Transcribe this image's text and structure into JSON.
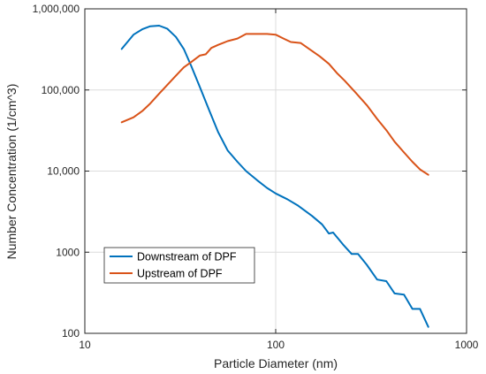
{
  "chart_data": {
    "type": "line",
    "title": "",
    "xlabel": "Particle Diameter (nm)",
    "ylabel": "Number Concentration (1/cm^3)",
    "xscale": "log",
    "yscale": "log",
    "xlim": [
      10,
      1000
    ],
    "ylim": [
      100,
      1000000
    ],
    "xticks": [
      10,
      100,
      1000
    ],
    "xtick_labels": [
      "10",
      "100",
      "1000"
    ],
    "yticks": [
      100,
      1000,
      10000,
      100000,
      1000000
    ],
    "ytick_labels": [
      "100",
      "1000",
      "10,000",
      "100,000",
      "1,000,000"
    ],
    "grid": true,
    "legend_position": "lower-left",
    "series": [
      {
        "name": "Downstream of DPF",
        "color": "#0072BD",
        "x": [
          15.6,
          18,
          20,
          22,
          24.5,
          27,
          30,
          33,
          36,
          40,
          45,
          50,
          56,
          63,
          70,
          80,
          90,
          100,
          115,
          130,
          155,
          175,
          190,
          200,
          225,
          250,
          270,
          300,
          340,
          380,
          420,
          470,
          520,
          570,
          630
        ],
        "y": [
          320000,
          480000,
          560000,
          610000,
          620000,
          570000,
          450000,
          320000,
          200000,
          110000,
          55000,
          30000,
          18000,
          13000,
          10000,
          7700,
          6200,
          5300,
          4500,
          3800,
          2800,
          2200,
          1700,
          1750,
          1250,
          950,
          950,
          700,
          460,
          440,
          310,
          300,
          200,
          200,
          120
        ]
      },
      {
        "name": "Upstream of DPF",
        "color": "#D95319",
        "x": [
          15.6,
          18,
          20,
          22,
          24.5,
          27,
          30,
          33,
          36,
          40,
          43,
          46,
          50,
          56,
          63,
          70,
          80,
          90,
          100,
          110,
          120,
          135,
          150,
          170,
          190,
          210,
          230,
          260,
          300,
          340,
          380,
          420,
          470,
          520,
          570,
          630
        ],
        "y": [
          40000,
          46000,
          55000,
          68000,
          90000,
          115000,
          150000,
          190000,
          220000,
          265000,
          275000,
          330000,
          360000,
          400000,
          430000,
          490000,
          490000,
          490000,
          480000,
          430000,
          390000,
          380000,
          320000,
          260000,
          210000,
          160000,
          130000,
          95000,
          65000,
          44000,
          32000,
          23000,
          17000,
          13000,
          10500,
          9000
        ]
      }
    ]
  }
}
